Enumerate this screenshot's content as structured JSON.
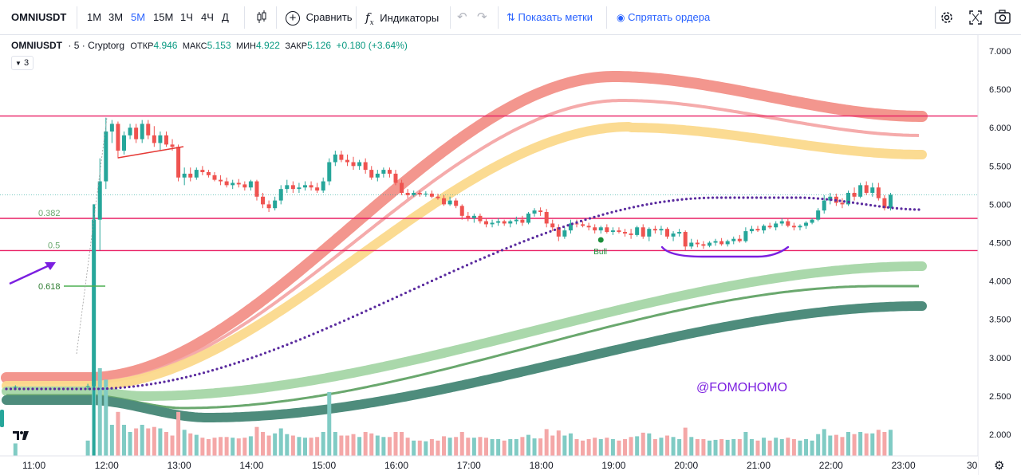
{
  "toolbar": {
    "symbol": "OMNIUSDT",
    "timeframes": [
      "1M",
      "3M",
      "5M",
      "15M",
      "1Ч",
      "4Ч",
      "Д"
    ],
    "active_timeframe": "5M",
    "compare_label": "Сравнить",
    "indicators_label": "Индикаторы",
    "show_marks_label": "Показать метки",
    "hide_orders_label": "Спрятать ордера"
  },
  "legend": {
    "symbol": "OMNIUSDT",
    "interval": "5",
    "exchange": "Cryptorg",
    "open_label": "ОТКР",
    "open": "4.946",
    "high_label": "МАКС",
    "high": "5.153",
    "low_label": "МИН",
    "low": "4.922",
    "close_label": "ЗАКР",
    "close": "5.126",
    "change": "+0.180 (+3.64%)",
    "indicator_count": "3"
  },
  "price_axis": {
    "labels": [
      "7.000",
      "6.500",
      "6.000",
      "5.500",
      "5.000",
      "4.500",
      "4.000",
      "3.500",
      "3.000",
      "2.500",
      "2.000"
    ]
  },
  "time_axis": {
    "labels": [
      "11:00",
      "12:00",
      "13:00",
      "14:00",
      "15:00",
      "16:00",
      "17:00",
      "18:00",
      "19:00",
      "20:00",
      "21:00",
      "22:00",
      "23:00",
      "30"
    ]
  },
  "levels": [
    {
      "price": 6.152,
      "label": "6.152",
      "color": "#e91e63"
    },
    {
      "price": 4.817,
      "label": "4.817",
      "color": "#e91e63"
    },
    {
      "price": 4.397,
      "label": "4.397",
      "color": "#e91e63"
    }
  ],
  "current_price": {
    "price": 5.126,
    "label": "5.126",
    "color": "#089981"
  },
  "fib": [
    {
      "ratio": "0.382",
      "price": 4.817
    },
    {
      "ratio": "0.5",
      "price": 4.397
    },
    {
      "ratio": "0.618",
      "price": 3.975
    }
  ],
  "annotations": {
    "bull_label": "Bull",
    "watermark": "@FOMOHOMO"
  },
  "colors": {
    "up": "#26a69a",
    "down": "#ef5350",
    "level": "#e91e63",
    "dots": "#5b2c9f",
    "annotation": "#7b1fe0"
  },
  "chart_data": {
    "type": "candlestick",
    "timeframe": "5m",
    "ylim": [
      1.8,
      7.1
    ],
    "x_range": [
      "10:45",
      "23:20"
    ],
    "ohlc": [
      [
        "10:45",
        2.62,
        2.64,
        2.6,
        2.62
      ],
      [
        "11:45",
        2.62,
        2.66,
        2.58,
        2.63
      ],
      [
        "11:50",
        2.63,
        5.0,
        2.55,
        4.8
      ],
      [
        "11:55",
        4.8,
        5.6,
        4.4,
        5.3
      ],
      [
        "12:00",
        5.3,
        6.13,
        5.2,
        5.95
      ],
      [
        "12:05",
        5.95,
        6.1,
        5.8,
        6.05
      ],
      [
        "12:10",
        6.05,
        6.08,
        5.6,
        5.7
      ],
      [
        "12:15",
        5.7,
        5.95,
        5.65,
        5.9
      ],
      [
        "12:20",
        5.9,
        6.05,
        5.85,
        6.0
      ],
      [
        "12:25",
        6.0,
        6.05,
        5.8,
        5.85
      ],
      [
        "12:30",
        5.85,
        6.1,
        5.8,
        6.05
      ],
      [
        "12:35",
        6.05,
        6.1,
        5.85,
        5.9
      ],
      [
        "12:40",
        5.9,
        6.02,
        5.75,
        5.8
      ],
      [
        "12:45",
        5.8,
        5.95,
        5.7,
        5.9
      ],
      [
        "12:50",
        5.9,
        5.95,
        5.75,
        5.78
      ],
      [
        "12:55",
        5.78,
        5.85,
        5.7,
        5.75
      ],
      [
        "13:00",
        5.75,
        5.78,
        5.3,
        5.35
      ],
      [
        "13:05",
        5.35,
        5.48,
        5.25,
        5.4
      ],
      [
        "13:10",
        5.4,
        5.48,
        5.3,
        5.35
      ],
      [
        "13:15",
        5.35,
        5.48,
        5.32,
        5.45
      ],
      [
        "13:20",
        5.45,
        5.5,
        5.38,
        5.42
      ],
      [
        "13:25",
        5.42,
        5.45,
        5.35,
        5.38
      ],
      [
        "13:30",
        5.38,
        5.42,
        5.3,
        5.32
      ],
      [
        "13:35",
        5.32,
        5.38,
        5.25,
        5.3
      ],
      [
        "13:40",
        5.3,
        5.35,
        5.22,
        5.25
      ],
      [
        "13:45",
        5.25,
        5.32,
        5.2,
        5.28
      ],
      [
        "13:50",
        5.28,
        5.33,
        5.22,
        5.26
      ],
      [
        "13:55",
        5.26,
        5.3,
        5.18,
        5.22
      ],
      [
        "14:00",
        5.22,
        5.32,
        5.18,
        5.3
      ],
      [
        "14:05",
        5.3,
        5.32,
        5.05,
        5.1
      ],
      [
        "14:10",
        5.1,
        5.15,
        4.95,
        5.0
      ],
      [
        "14:15",
        5.0,
        5.05,
        4.9,
        4.95
      ],
      [
        "14:20",
        4.95,
        5.1,
        4.92,
        5.05
      ],
      [
        "14:25",
        5.05,
        5.25,
        5.0,
        5.2
      ],
      [
        "14:30",
        5.2,
        5.32,
        5.15,
        5.25
      ],
      [
        "14:35",
        5.25,
        5.3,
        5.15,
        5.2
      ],
      [
        "14:40",
        5.2,
        5.28,
        5.15,
        5.22
      ],
      [
        "14:45",
        5.22,
        5.3,
        5.18,
        5.25
      ],
      [
        "14:50",
        5.25,
        5.3,
        5.18,
        5.22
      ],
      [
        "14:55",
        5.22,
        5.28,
        5.15,
        5.18
      ],
      [
        "15:00",
        5.18,
        5.35,
        5.15,
        5.3
      ],
      [
        "15:05",
        5.3,
        5.6,
        5.25,
        5.55
      ],
      [
        "15:10",
        5.55,
        5.7,
        5.5,
        5.65
      ],
      [
        "15:15",
        5.65,
        5.7,
        5.55,
        5.58
      ],
      [
        "15:20",
        5.58,
        5.65,
        5.5,
        5.55
      ],
      [
        "15:25",
        5.55,
        5.62,
        5.45,
        5.5
      ],
      [
        "15:30",
        5.5,
        5.58,
        5.45,
        5.55
      ],
      [
        "15:35",
        5.55,
        5.6,
        5.4,
        5.45
      ],
      [
        "15:40",
        5.45,
        5.5,
        5.32,
        5.35
      ],
      [
        "15:45",
        5.35,
        5.45,
        5.3,
        5.4
      ],
      [
        "15:50",
        5.4,
        5.48,
        5.35,
        5.45
      ],
      [
        "15:55",
        5.45,
        5.48,
        5.35,
        5.4
      ],
      [
        "16:00",
        5.4,
        5.45,
        5.25,
        5.28
      ],
      [
        "16:05",
        5.28,
        5.32,
        5.12,
        5.15
      ],
      [
        "16:10",
        5.15,
        5.2,
        5.08,
        5.12
      ],
      [
        "16:15",
        5.12,
        5.18,
        5.1,
        5.15
      ],
      [
        "16:20",
        5.15,
        5.18,
        5.1,
        5.13
      ],
      [
        "16:25",
        5.13,
        5.17,
        5.1,
        5.14
      ],
      [
        "16:30",
        5.14,
        5.18,
        5.08,
        5.1
      ],
      [
        "16:35",
        5.1,
        5.14,
        5.06,
        5.08
      ],
      [
        "16:40",
        5.08,
        5.12,
        4.98,
        5.0
      ],
      [
        "16:45",
        5.0,
        5.1,
        4.98,
        5.05
      ],
      [
        "16:50",
        5.05,
        5.08,
        4.95,
        4.98
      ],
      [
        "16:55",
        4.98,
        5.0,
        4.8,
        4.85
      ],
      [
        "17:00",
        4.85,
        4.9,
        4.78,
        4.82
      ],
      [
        "17:05",
        4.82,
        4.88,
        4.76,
        4.85
      ],
      [
        "17:10",
        4.85,
        4.88,
        4.75,
        4.78
      ],
      [
        "17:15",
        4.78,
        4.82,
        4.7,
        4.74
      ],
      [
        "17:20",
        4.74,
        4.8,
        4.7,
        4.76
      ],
      [
        "17:25",
        4.76,
        4.82,
        4.72,
        4.78
      ],
      [
        "17:30",
        4.78,
        4.8,
        4.72,
        4.75
      ],
      [
        "17:35",
        4.75,
        4.8,
        4.7,
        4.78
      ],
      [
        "17:40",
        4.78,
        4.84,
        4.74,
        4.8
      ],
      [
        "17:45",
        4.8,
        4.85,
        4.72,
        4.76
      ],
      [
        "17:50",
        4.76,
        4.9,
        4.74,
        4.88
      ],
      [
        "17:55",
        4.88,
        4.95,
        4.84,
        4.92
      ],
      [
        "18:00",
        4.92,
        4.96,
        4.85,
        4.9
      ],
      [
        "18:05",
        4.9,
        4.94,
        4.7,
        4.75
      ],
      [
        "18:10",
        4.75,
        4.8,
        4.65,
        4.7
      ],
      [
        "18:15",
        4.7,
        4.74,
        4.52,
        4.58
      ],
      [
        "18:20",
        4.58,
        4.7,
        4.55,
        4.66
      ],
      [
        "18:25",
        4.66,
        4.8,
        4.62,
        4.75
      ],
      [
        "18:30",
        4.75,
        4.8,
        4.7,
        4.74
      ],
      [
        "18:35",
        4.74,
        4.78,
        4.7,
        4.72
      ],
      [
        "18:40",
        4.72,
        4.76,
        4.66,
        4.7
      ],
      [
        "18:45",
        4.7,
        4.74,
        4.62,
        4.66
      ],
      [
        "18:50",
        4.66,
        4.72,
        4.62,
        4.7
      ],
      [
        "18:55",
        4.7,
        4.74,
        4.62,
        4.64
      ],
      [
        "19:00",
        4.64,
        4.7,
        4.6,
        4.66
      ],
      [
        "19:05",
        4.66,
        4.7,
        4.62,
        4.64
      ],
      [
        "19:10",
        4.64,
        4.68,
        4.58,
        4.62
      ],
      [
        "19:15",
        4.62,
        4.68,
        4.55,
        4.6
      ],
      [
        "19:20",
        4.6,
        4.72,
        4.58,
        4.7
      ],
      [
        "19:25",
        4.7,
        4.74,
        4.55,
        4.58
      ],
      [
        "19:30",
        4.58,
        4.7,
        4.52,
        4.68
      ],
      [
        "19:35",
        4.68,
        4.72,
        4.62,
        4.66
      ],
      [
        "19:40",
        4.66,
        4.72,
        4.6,
        4.68
      ],
      [
        "19:45",
        4.68,
        4.7,
        4.55,
        4.58
      ],
      [
        "19:50",
        4.58,
        4.65,
        4.52,
        4.62
      ],
      [
        "19:55",
        4.62,
        4.68,
        4.58,
        4.64
      ],
      [
        "20:00",
        4.64,
        4.66,
        4.4,
        4.45
      ],
      [
        "20:05",
        4.45,
        4.55,
        4.42,
        4.5
      ],
      [
        "20:10",
        4.5,
        4.54,
        4.44,
        4.48
      ],
      [
        "20:15",
        4.48,
        4.52,
        4.42,
        4.46
      ],
      [
        "20:20",
        4.46,
        4.52,
        4.44,
        4.5
      ],
      [
        "20:25",
        4.5,
        4.55,
        4.46,
        4.52
      ],
      [
        "20:30",
        4.52,
        4.56,
        4.46,
        4.48
      ],
      [
        "20:35",
        4.48,
        4.54,
        4.45,
        4.52
      ],
      [
        "20:40",
        4.52,
        4.58,
        4.48,
        4.55
      ],
      [
        "20:45",
        4.55,
        4.6,
        4.5,
        4.52
      ],
      [
        "20:50",
        4.52,
        4.7,
        4.5,
        4.65
      ],
      [
        "20:55",
        4.65,
        4.72,
        4.62,
        4.68
      ],
      [
        "21:00",
        4.68,
        4.72,
        4.64,
        4.66
      ],
      [
        "21:05",
        4.66,
        4.74,
        4.62,
        4.72
      ],
      [
        "21:10",
        4.72,
        4.76,
        4.68,
        4.7
      ],
      [
        "21:15",
        4.7,
        4.78,
        4.66,
        4.75
      ],
      [
        "21:20",
        4.75,
        4.82,
        4.72,
        4.78
      ],
      [
        "21:25",
        4.78,
        4.82,
        4.7,
        4.72
      ],
      [
        "21:30",
        4.72,
        4.76,
        4.66,
        4.7
      ],
      [
        "21:35",
        4.7,
        4.74,
        4.66,
        4.72
      ],
      [
        "21:40",
        4.72,
        4.78,
        4.68,
        4.76
      ],
      [
        "21:45",
        4.76,
        4.82,
        4.74,
        4.8
      ],
      [
        "21:50",
        4.8,
        4.95,
        4.78,
        4.92
      ],
      [
        "21:55",
        4.92,
        5.12,
        4.88,
        5.05
      ],
      [
        "22:00",
        5.05,
        5.15,
        5.0,
        5.1
      ],
      [
        "22:05",
        5.1,
        5.14,
        4.98,
        5.02
      ],
      [
        "22:10",
        5.02,
        5.08,
        4.95,
        5.0
      ],
      [
        "22:15",
        5.0,
        5.18,
        4.98,
        5.15
      ],
      [
        "22:20",
        5.15,
        5.22,
        5.05,
        5.1
      ],
      [
        "22:25",
        5.1,
        5.28,
        5.08,
        5.25
      ],
      [
        "22:30",
        5.25,
        5.3,
        5.12,
        5.15
      ],
      [
        "22:35",
        5.15,
        5.28,
        5.1,
        5.22
      ],
      [
        "22:40",
        5.22,
        5.28,
        5.05,
        5.08
      ],
      [
        "22:45",
        5.08,
        5.12,
        4.92,
        4.95
      ],
      [
        "22:50",
        4.95,
        5.15,
        4.92,
        5.126
      ]
    ]
  }
}
